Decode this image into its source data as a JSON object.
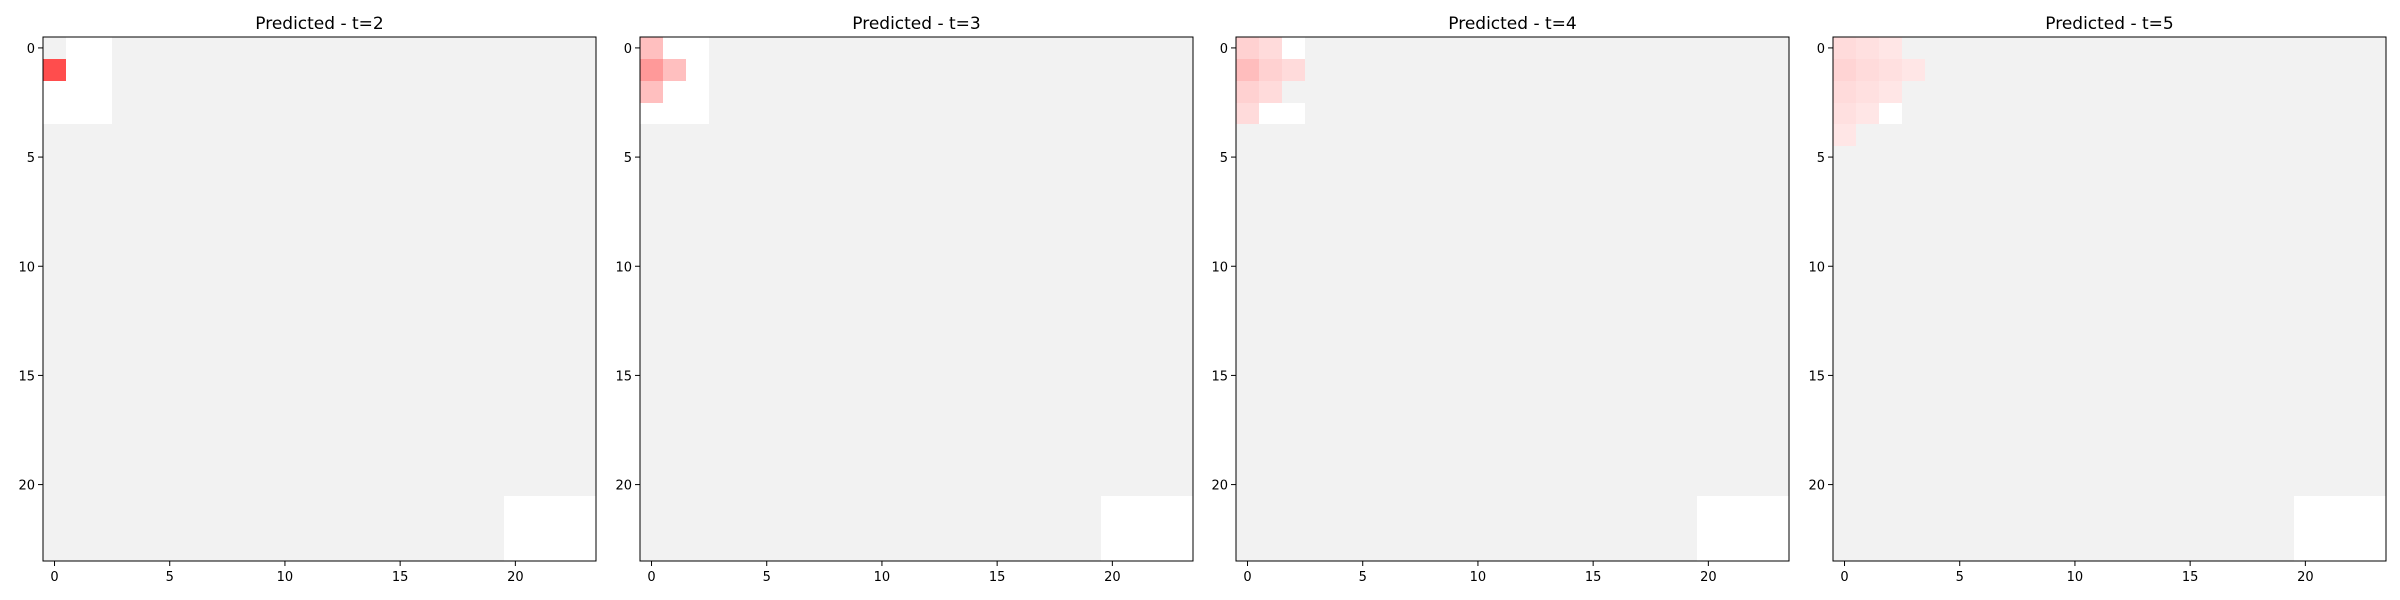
{
  "chart_data": [
    {
      "type": "heatmap",
      "title": "Predicted - t=2",
      "grid_size": [
        24,
        24
      ],
      "background_value_color": "#f2f2f2",
      "empty_cell_color": "#ffffff",
      "heat_color": "#ff0000",
      "xticks": [
        0,
        5,
        10,
        15,
        20
      ],
      "yticks": [
        0,
        5,
        10,
        15,
        20
      ],
      "xlim": [
        -0.5,
        23.5
      ],
      "ylim": [
        23.5,
        -0.5
      ],
      "empty_cells": [
        [
          0,
          1
        ],
        [
          0,
          2
        ],
        [
          1,
          1
        ],
        [
          1,
          2
        ],
        [
          2,
          0
        ],
        [
          2,
          1
        ],
        [
          2,
          2
        ],
        [
          3,
          0
        ],
        [
          3,
          1
        ],
        [
          3,
          2
        ],
        [
          21,
          20
        ],
        [
          21,
          21
        ],
        [
          21,
          22
        ],
        [
          21,
          23
        ],
        [
          22,
          20
        ],
        [
          22,
          21
        ],
        [
          22,
          22
        ],
        [
          22,
          23
        ],
        [
          23,
          20
        ],
        [
          23,
          21
        ],
        [
          23,
          22
        ],
        [
          23,
          23
        ]
      ],
      "heat_cells": [
        {
          "row": 1,
          "col": 0,
          "value": 0.7
        }
      ]
    },
    {
      "type": "heatmap",
      "title": "Predicted - t=3",
      "grid_size": [
        24,
        24
      ],
      "background_value_color": "#f2f2f2",
      "empty_cell_color": "#ffffff",
      "heat_color": "#ff0000",
      "xticks": [
        0,
        5,
        10,
        15,
        20
      ],
      "yticks": [
        0,
        5,
        10,
        15,
        20
      ],
      "xlim": [
        -0.5,
        23.5
      ],
      "ylim": [
        23.5,
        -0.5
      ],
      "empty_cells": [
        [
          0,
          1
        ],
        [
          0,
          2
        ],
        [
          1,
          2
        ],
        [
          2,
          1
        ],
        [
          2,
          2
        ],
        [
          3,
          0
        ],
        [
          3,
          1
        ],
        [
          3,
          2
        ],
        [
          21,
          20
        ],
        [
          21,
          21
        ],
        [
          21,
          22
        ],
        [
          21,
          23
        ],
        [
          22,
          20
        ],
        [
          22,
          21
        ],
        [
          22,
          22
        ],
        [
          22,
          23
        ],
        [
          23,
          20
        ],
        [
          23,
          21
        ],
        [
          23,
          22
        ],
        [
          23,
          23
        ]
      ],
      "heat_cells": [
        {
          "row": 0,
          "col": 0,
          "value": 0.25
        },
        {
          "row": 1,
          "col": 0,
          "value": 0.4
        },
        {
          "row": 1,
          "col": 1,
          "value": 0.25
        },
        {
          "row": 2,
          "col": 0,
          "value": 0.25
        }
      ]
    },
    {
      "type": "heatmap",
      "title": "Predicted - t=4",
      "grid_size": [
        24,
        24
      ],
      "background_value_color": "#f2f2f2",
      "empty_cell_color": "#ffffff",
      "heat_color": "#ff0000",
      "xticks": [
        0,
        5,
        10,
        15,
        20
      ],
      "yticks": [
        0,
        5,
        10,
        15,
        20
      ],
      "xlim": [
        -0.5,
        23.5
      ],
      "ylim": [
        23.5,
        -0.5
      ],
      "empty_cells": [
        [
          0,
          2
        ],
        [
          3,
          1
        ],
        [
          3,
          2
        ],
        [
          21,
          20
        ],
        [
          21,
          21
        ],
        [
          21,
          22
        ],
        [
          21,
          23
        ],
        [
          22,
          20
        ],
        [
          22,
          21
        ],
        [
          22,
          22
        ],
        [
          22,
          23
        ],
        [
          23,
          20
        ],
        [
          23,
          21
        ],
        [
          23,
          22
        ],
        [
          23,
          23
        ]
      ],
      "heat_cells": [
        {
          "row": 0,
          "col": 0,
          "value": 0.18
        },
        {
          "row": 0,
          "col": 1,
          "value": 0.14
        },
        {
          "row": 1,
          "col": 0,
          "value": 0.26
        },
        {
          "row": 1,
          "col": 1,
          "value": 0.18
        },
        {
          "row": 1,
          "col": 2,
          "value": 0.14
        },
        {
          "row": 2,
          "col": 0,
          "value": 0.18
        },
        {
          "row": 2,
          "col": 1,
          "value": 0.14
        },
        {
          "row": 3,
          "col": 0,
          "value": 0.14
        }
      ]
    },
    {
      "type": "heatmap",
      "title": "Predicted - t=5",
      "grid_size": [
        24,
        24
      ],
      "background_value_color": "#f2f2f2",
      "empty_cell_color": "#ffffff",
      "heat_color": "#ff0000",
      "xticks": [
        0,
        5,
        10,
        15,
        20
      ],
      "yticks": [
        0,
        5,
        10,
        15,
        20
      ],
      "xlim": [
        -0.5,
        23.5
      ],
      "ylim": [
        23.5,
        -0.5
      ],
      "empty_cells": [
        [
          3,
          2
        ],
        [
          21,
          20
        ],
        [
          21,
          21
        ],
        [
          21,
          22
        ],
        [
          21,
          23
        ],
        [
          22,
          20
        ],
        [
          22,
          21
        ],
        [
          22,
          22
        ],
        [
          22,
          23
        ],
        [
          23,
          20
        ],
        [
          23,
          21
        ],
        [
          23,
          22
        ],
        [
          23,
          23
        ]
      ],
      "heat_cells": [
        {
          "row": 0,
          "col": 0,
          "value": 0.14
        },
        {
          "row": 0,
          "col": 1,
          "value": 0.12
        },
        {
          "row": 0,
          "col": 2,
          "value": 0.1
        },
        {
          "row": 1,
          "col": 0,
          "value": 0.17
        },
        {
          "row": 1,
          "col": 1,
          "value": 0.14
        },
        {
          "row": 1,
          "col": 2,
          "value": 0.12
        },
        {
          "row": 1,
          "col": 3,
          "value": 0.1
        },
        {
          "row": 2,
          "col": 0,
          "value": 0.14
        },
        {
          "row": 2,
          "col": 1,
          "value": 0.12
        },
        {
          "row": 2,
          "col": 2,
          "value": 0.1
        },
        {
          "row": 3,
          "col": 0,
          "value": 0.12
        },
        {
          "row": 3,
          "col": 1,
          "value": 0.1
        },
        {
          "row": 4,
          "col": 0,
          "value": 0.1
        }
      ]
    }
  ]
}
